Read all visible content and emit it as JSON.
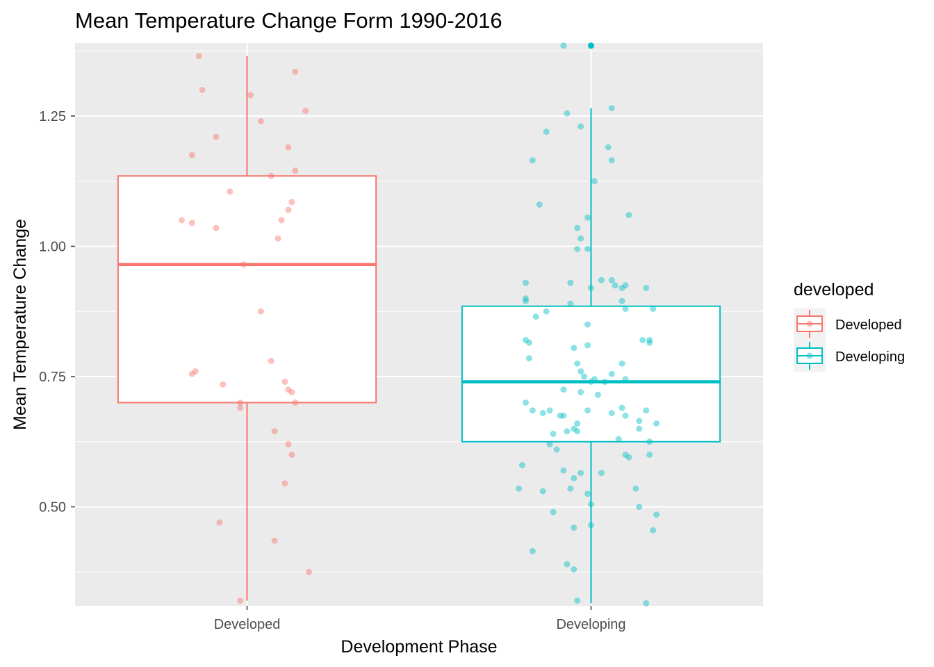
{
  "chart_data": {
    "type": "boxplot",
    "title": "Mean Temperature Change Form 1990-2016",
    "xlabel": "Development Phase",
    "ylabel": "Mean Temperature Change",
    "ylim": [
      0.31,
      1.39
    ],
    "yticks": [
      0.5,
      0.75,
      1.0,
      1.25
    ],
    "ytick_labels": [
      "0.50",
      "0.75",
      "1.00",
      "1.25"
    ],
    "grid": true,
    "legend": {
      "title": "developed",
      "position": "right"
    },
    "categories": [
      "Developed",
      "Developing"
    ],
    "series": [
      {
        "name": "Developed",
        "color": "#F8766D",
        "box": {
          "lower_whisker": 0.32,
          "q1": 0.7,
          "median": 0.965,
          "q3": 1.135,
          "upper_whisker": 1.365
        },
        "outliers": [],
        "points": [
          [
            -0.14,
            1.365
          ],
          [
            -0.13,
            1.3
          ],
          [
            0.01,
            1.29
          ],
          [
            0.14,
            1.335
          ],
          [
            0.17,
            1.26
          ],
          [
            -0.09,
            1.21
          ],
          [
            0.04,
            1.24
          ],
          [
            -0.16,
            1.175
          ],
          [
            0.12,
            1.19
          ],
          [
            0.14,
            1.145
          ],
          [
            0.07,
            1.135
          ],
          [
            -0.05,
            1.105
          ],
          [
            0.13,
            1.085
          ],
          [
            0.12,
            1.07
          ],
          [
            -0.19,
            1.05
          ],
          [
            -0.16,
            1.045
          ],
          [
            0.1,
            1.05
          ],
          [
            -0.09,
            1.035
          ],
          [
            0.09,
            1.015
          ],
          [
            -0.01,
            0.965
          ],
          [
            0.04,
            0.875
          ],
          [
            0.07,
            0.78
          ],
          [
            -0.15,
            0.76
          ],
          [
            -0.16,
            0.755
          ],
          [
            -0.07,
            0.735
          ],
          [
            0.11,
            0.74
          ],
          [
            0.12,
            0.725
          ],
          [
            0.13,
            0.72
          ],
          [
            0.14,
            0.7
          ],
          [
            -0.02,
            0.7
          ],
          [
            -0.02,
            0.69
          ],
          [
            0.08,
            0.645
          ],
          [
            0.12,
            0.62
          ],
          [
            0.13,
            0.6
          ],
          [
            0.11,
            0.545
          ],
          [
            -0.08,
            0.47
          ],
          [
            0.08,
            0.435
          ],
          [
            0.18,
            0.375
          ],
          [
            -0.02,
            0.32
          ]
        ]
      },
      {
        "name": "Developing",
        "color": "#00BFC4",
        "box": {
          "lower_whisker": 0.315,
          "q1": 0.625,
          "median": 0.74,
          "q3": 0.885,
          "upper_whisker": 1.265
        },
        "outliers": [
          1.385
        ],
        "points": [
          [
            -0.08,
            1.385
          ],
          [
            -0.07,
            1.255
          ],
          [
            0.06,
            1.265
          ],
          [
            -0.13,
            1.22
          ],
          [
            -0.03,
            1.23
          ],
          [
            0.05,
            1.19
          ],
          [
            -0.17,
            1.165
          ],
          [
            0.06,
            1.165
          ],
          [
            0.01,
            1.125
          ],
          [
            -0.15,
            1.08
          ],
          [
            0.11,
            1.06
          ],
          [
            -0.04,
            1.035
          ],
          [
            -0.01,
            1.055
          ],
          [
            -0.03,
            1.015
          ],
          [
            -0.04,
            0.995
          ],
          [
            -0.01,
            0.995
          ],
          [
            -0.19,
            0.93
          ],
          [
            -0.06,
            0.93
          ],
          [
            0.03,
            0.935
          ],
          [
            0.06,
            0.935
          ],
          [
            0.0,
            0.92
          ],
          [
            0.07,
            0.925
          ],
          [
            0.09,
            0.92
          ],
          [
            0.1,
            0.925
          ],
          [
            0.16,
            0.92
          ],
          [
            -0.19,
            0.9
          ],
          [
            -0.19,
            0.895
          ],
          [
            -0.06,
            0.89
          ],
          [
            0.09,
            0.895
          ],
          [
            0.1,
            0.88
          ],
          [
            -0.13,
            0.875
          ],
          [
            0.18,
            0.88
          ],
          [
            -0.16,
            0.865
          ],
          [
            -0.01,
            0.85
          ],
          [
            -0.19,
            0.82
          ],
          [
            -0.18,
            0.815
          ],
          [
            -0.05,
            0.805
          ],
          [
            -0.01,
            0.81
          ],
          [
            0.15,
            0.82
          ],
          [
            0.17,
            0.82
          ],
          [
            0.17,
            0.815
          ],
          [
            -0.18,
            0.785
          ],
          [
            -0.04,
            0.775
          ],
          [
            0.09,
            0.775
          ],
          [
            -0.03,
            0.76
          ],
          [
            -0.02,
            0.75
          ],
          [
            0.01,
            0.745
          ],
          [
            0.06,
            0.755
          ],
          [
            0.1,
            0.745
          ],
          [
            0.0,
            0.74
          ],
          [
            0.04,
            0.74
          ],
          [
            -0.08,
            0.725
          ],
          [
            -0.03,
            0.72
          ],
          [
            0.02,
            0.715
          ],
          [
            -0.19,
            0.7
          ],
          [
            -0.17,
            0.685
          ],
          [
            -0.14,
            0.68
          ],
          [
            -0.12,
            0.685
          ],
          [
            -0.01,
            0.685
          ],
          [
            0.06,
            0.68
          ],
          [
            0.09,
            0.69
          ],
          [
            0.16,
            0.685
          ],
          [
            -0.09,
            0.675
          ],
          [
            -0.08,
            0.675
          ],
          [
            0.1,
            0.675
          ],
          [
            -0.04,
            0.66
          ],
          [
            0.14,
            0.665
          ],
          [
            0.19,
            0.66
          ],
          [
            -0.11,
            0.64
          ],
          [
            -0.07,
            0.645
          ],
          [
            -0.05,
            0.65
          ],
          [
            -0.04,
            0.645
          ],
          [
            0.14,
            0.65
          ],
          [
            0.08,
            0.63
          ],
          [
            0.17,
            0.625
          ],
          [
            -0.12,
            0.62
          ],
          [
            -0.1,
            0.61
          ],
          [
            0.1,
            0.6
          ],
          [
            0.11,
            0.595
          ],
          [
            0.17,
            0.6
          ],
          [
            -0.2,
            0.58
          ],
          [
            -0.08,
            0.57
          ],
          [
            -0.03,
            0.565
          ],
          [
            0.03,
            0.565
          ],
          [
            -0.05,
            0.555
          ],
          [
            -0.21,
            0.535
          ],
          [
            -0.14,
            0.53
          ],
          [
            -0.06,
            0.535
          ],
          [
            -0.01,
            0.525
          ],
          [
            0.13,
            0.535
          ],
          [
            0.0,
            0.505
          ],
          [
            0.14,
            0.5
          ],
          [
            0.19,
            0.485
          ],
          [
            -0.11,
            0.49
          ],
          [
            -0.05,
            0.46
          ],
          [
            0.0,
            0.465
          ],
          [
            0.18,
            0.455
          ],
          [
            -0.17,
            0.415
          ],
          [
            -0.07,
            0.39
          ],
          [
            -0.05,
            0.38
          ],
          [
            -0.04,
            0.32
          ],
          [
            0.16,
            0.315
          ]
        ]
      }
    ]
  }
}
